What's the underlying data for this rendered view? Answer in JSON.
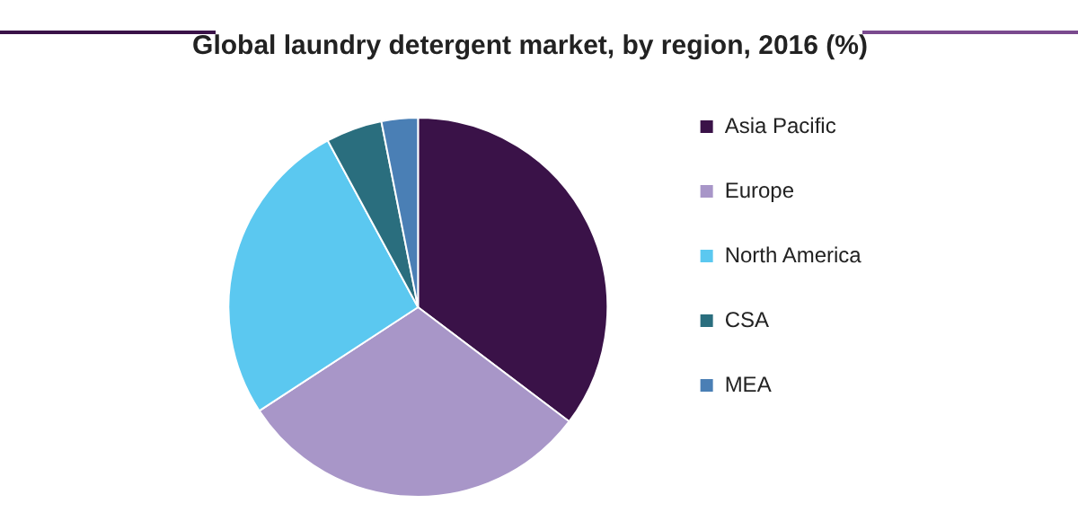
{
  "chart_data": {
    "type": "pie",
    "title": "Global laundry detergent market, by region, 2016 (%)",
    "categories": [
      "Asia Pacific",
      "Europe",
      "North America",
      "CSA",
      "MEA"
    ],
    "values": [
      35.3,
      30.5,
      26.3,
      4.8,
      3.1
    ],
    "colors": [
      "#3a1248",
      "#a896c8",
      "#5bc8f0",
      "#2a6e7e",
      "#4a7fb5"
    ],
    "legend": "right"
  }
}
